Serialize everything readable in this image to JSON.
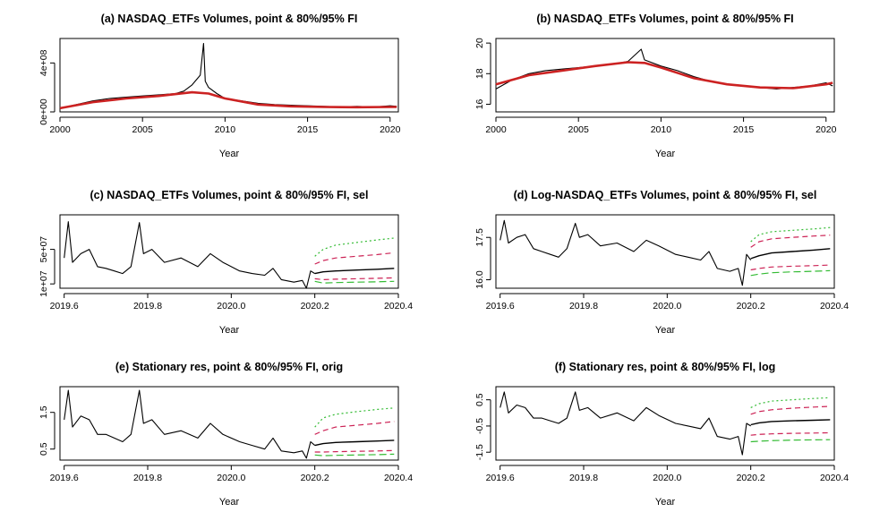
{
  "figure": {
    "xlabel": "Year",
    "colors": {
      "series": "#000000",
      "trend": "#cc2222",
      "fi80": "#cc2255",
      "fi95": "#33bb33"
    }
  },
  "chart_data": [
    {
      "id": "a",
      "type": "line",
      "title": "(a) NASDAQ_ETFs Volumes, point & 80%/95% FI",
      "xlabel": "Year",
      "ylabel": "",
      "xlim": [
        2000,
        2020.5
      ],
      "ylim": [
        0,
        600000000
      ],
      "xticks": [
        2000,
        2005,
        2010,
        2015,
        2020
      ],
      "xtick_labels": [
        "2000",
        "2005",
        "2010",
        "2015",
        "2020"
      ],
      "yticks": [
        0,
        400000000
      ],
      "ytick_labels": [
        "0e+00",
        "4e+08"
      ],
      "grid": false,
      "legend": "none",
      "series": [
        {
          "role": "observed",
          "x": [
            2000,
            2001,
            2002,
            2003,
            2004,
            2005,
            2006,
            2007,
            2007.5,
            2008,
            2008.5,
            2008.7,
            2008.8,
            2009,
            2009.5,
            2010,
            2011,
            2012,
            2013,
            2014,
            2015,
            2016,
            2017,
            2018,
            2019,
            2020,
            2020.4
          ],
          "y": [
            30000000,
            60000000,
            90000000,
            110000000,
            120000000,
            130000000,
            140000000,
            150000000,
            170000000,
            220000000,
            300000000,
            560000000,
            250000000,
            200000000,
            150000000,
            110000000,
            90000000,
            70000000,
            60000000,
            55000000,
            50000000,
            45000000,
            40000000,
            45000000,
            40000000,
            50000000,
            45000000
          ]
        },
        {
          "role": "trend",
          "x": [
            2000,
            2002,
            2004,
            2006,
            2008,
            2009,
            2010,
            2012,
            2014,
            2016,
            2018,
            2020,
            2020.4
          ],
          "y": [
            30000000,
            80000000,
            110000000,
            130000000,
            160000000,
            150000000,
            110000000,
            60000000,
            45000000,
            40000000,
            38000000,
            40000000,
            40000000
          ]
        }
      ]
    },
    {
      "id": "b",
      "type": "line",
      "title": "(b) NASDAQ_ETFs Volumes, point & 80%/95% FI",
      "xlabel": "Year",
      "ylabel": "",
      "xlim": [
        2000,
        2020.5
      ],
      "ylim": [
        15.5,
        20.3
      ],
      "xticks": [
        2000,
        2005,
        2010,
        2015,
        2020
      ],
      "xtick_labels": [
        "2000",
        "2005",
        "2010",
        "2015",
        "2020"
      ],
      "yticks": [
        16,
        18,
        20
      ],
      "ytick_labels": [
        "16",
        "18",
        "20"
      ],
      "grid": false,
      "legend": "none",
      "series": [
        {
          "role": "observed",
          "x": [
            2000,
            2001,
            2002,
            2003,
            2004,
            2005,
            2006,
            2007,
            2008,
            2008.8,
            2009,
            2010,
            2011,
            2012,
            2013,
            2014,
            2015,
            2016,
            2017,
            2018,
            2019,
            2020,
            2020.4
          ],
          "y": [
            17.0,
            17.6,
            18.0,
            18.2,
            18.3,
            18.4,
            18.5,
            18.6,
            18.8,
            19.6,
            18.9,
            18.5,
            18.2,
            17.8,
            17.5,
            17.3,
            17.2,
            17.1,
            17.0,
            17.1,
            17.2,
            17.4,
            17.2
          ]
        },
        {
          "role": "trend",
          "x": [
            2000,
            2002,
            2004,
            2006,
            2008,
            2009,
            2010,
            2012,
            2014,
            2016,
            2018,
            2020,
            2020.4
          ],
          "y": [
            17.3,
            17.9,
            18.2,
            18.5,
            18.75,
            18.7,
            18.4,
            17.7,
            17.3,
            17.1,
            17.05,
            17.3,
            17.4
          ]
        }
      ]
    },
    {
      "id": "c",
      "type": "line",
      "title": "(c) NASDAQ_ETFs Volumes, point & 80%/95% FI, sel",
      "xlabel": "Year",
      "ylabel": "",
      "xlim": [
        2019.59,
        2020.4
      ],
      "ylim": [
        5000000,
        90000000
      ],
      "xticks": [
        2019.6,
        2019.8,
        2020.0,
        2020.2,
        2020.4
      ],
      "xtick_labels": [
        "2019.6",
        "2019.8",
        "2020.0",
        "2020.2",
        "2020.4"
      ],
      "yticks": [
        10000000,
        50000000
      ],
      "ytick_labels": [
        "1e+07",
        "5e+07"
      ],
      "grid": false,
      "legend": "none",
      "series": [
        {
          "role": "observed",
          "x": [
            2019.6,
            2019.61,
            2019.62,
            2019.64,
            2019.66,
            2019.68,
            2019.7,
            2019.72,
            2019.74,
            2019.76,
            2019.78,
            2019.79,
            2019.81,
            2019.84,
            2019.88,
            2019.92,
            2019.95,
            2019.98,
            2020.02,
            2020.05,
            2020.08,
            2020.1,
            2020.12,
            2020.15,
            2020.17,
            2020.18,
            2020.19,
            2020.2
          ],
          "y": [
            40000000,
            82000000,
            35000000,
            45000000,
            50000000,
            30000000,
            28000000,
            25000000,
            22000000,
            30000000,
            81000000,
            45000000,
            50000000,
            35000000,
            40000000,
            30000000,
            45000000,
            35000000,
            25000000,
            22000000,
            20000000,
            28000000,
            15000000,
            12000000,
            14000000,
            5000000,
            25000000,
            22000000
          ]
        },
        {
          "role": "point-forecast",
          "x": [
            2020.2,
            2020.22,
            2020.25,
            2020.3,
            2020.35,
            2020.39
          ],
          "y": [
            22000000,
            24000000,
            25000000,
            26000000,
            27000000,
            28000000
          ]
        },
        {
          "role": "fi80-upper",
          "x": [
            2020.2,
            2020.22,
            2020.25,
            2020.3,
            2020.35,
            2020.39
          ],
          "y": [
            33000000,
            37000000,
            40000000,
            42000000,
            44000000,
            46000000
          ]
        },
        {
          "role": "fi80-lower",
          "x": [
            2020.2,
            2020.22,
            2020.25,
            2020.3,
            2020.35,
            2020.39
          ],
          "y": [
            16000000,
            15000000,
            15500000,
            16000000,
            16500000,
            17000000
          ]
        },
        {
          "role": "fi95-upper",
          "x": [
            2020.2,
            2020.22,
            2020.25,
            2020.3,
            2020.35,
            2020.39
          ],
          "y": [
            42000000,
            50000000,
            55000000,
            58000000,
            61000000,
            63000000
          ]
        },
        {
          "role": "fi95-lower",
          "x": [
            2020.2,
            2020.22,
            2020.25,
            2020.3,
            2020.35,
            2020.39
          ],
          "y": [
            13000000,
            11000000,
            11500000,
            12000000,
            12500000,
            13000000
          ]
        }
      ]
    },
    {
      "id": "d",
      "type": "line",
      "title": "(d) Log-NASDAQ_ETFs Volumes, point & 80%/95% FI, sel",
      "xlabel": "Year",
      "ylabel": "",
      "xlim": [
        2019.59,
        2020.4
      ],
      "ylim": [
        15.7,
        18.3
      ],
      "xticks": [
        2019.6,
        2019.8,
        2020.0,
        2020.2,
        2020.4
      ],
      "xtick_labels": [
        "2019.6",
        "2019.8",
        "2020.0",
        "2020.2",
        "2020.4"
      ],
      "yticks": [
        16.0,
        17.5
      ],
      "ytick_labels": [
        "16.0",
        "17.5"
      ],
      "grid": false,
      "legend": "none",
      "series": [
        {
          "role": "observed",
          "x": [
            2019.6,
            2019.61,
            2019.62,
            2019.64,
            2019.66,
            2019.68,
            2019.7,
            2019.72,
            2019.74,
            2019.76,
            2019.78,
            2019.79,
            2019.81,
            2019.84,
            2019.88,
            2019.92,
            2019.95,
            2019.98,
            2020.02,
            2020.05,
            2020.08,
            2020.1,
            2020.12,
            2020.15,
            2020.17,
            2020.18,
            2020.19,
            2020.2
          ],
          "y": [
            17.4,
            18.1,
            17.3,
            17.5,
            17.6,
            17.1,
            17.0,
            16.9,
            16.8,
            17.1,
            18.0,
            17.5,
            17.6,
            17.2,
            17.3,
            17.0,
            17.4,
            17.2,
            16.9,
            16.8,
            16.7,
            17.0,
            16.4,
            16.3,
            16.4,
            15.8,
            16.9,
            16.7
          ]
        },
        {
          "role": "point-forecast",
          "x": [
            2020.2,
            2020.22,
            2020.25,
            2020.3,
            2020.35,
            2020.39
          ],
          "y": [
            16.75,
            16.85,
            16.95,
            17.0,
            17.05,
            17.1
          ]
        },
        {
          "role": "fi80-upper",
          "x": [
            2020.2,
            2020.22,
            2020.25,
            2020.3,
            2020.35,
            2020.39
          ],
          "y": [
            17.15,
            17.35,
            17.45,
            17.5,
            17.55,
            17.58
          ]
        },
        {
          "role": "fi80-lower",
          "x": [
            2020.2,
            2020.22,
            2020.25,
            2020.3,
            2020.35,
            2020.39
          ],
          "y": [
            16.35,
            16.4,
            16.45,
            16.48,
            16.5,
            16.52
          ]
        },
        {
          "role": "fi95-upper",
          "x": [
            2020.2,
            2020.22,
            2020.25,
            2020.3,
            2020.35,
            2020.39
          ],
          "y": [
            17.35,
            17.6,
            17.7,
            17.75,
            17.8,
            17.85
          ]
        },
        {
          "role": "fi95-lower",
          "x": [
            2020.2,
            2020.22,
            2020.25,
            2020.3,
            2020.35,
            2020.39
          ],
          "y": [
            16.15,
            16.2,
            16.25,
            16.28,
            16.3,
            16.32
          ]
        }
      ]
    },
    {
      "id": "e",
      "type": "line",
      "title": "(e) Stationary res, point & 80%/95% FI, orig",
      "xlabel": "Year",
      "ylabel": "",
      "xlim": [
        2019.59,
        2020.4
      ],
      "ylim": [
        0.2,
        2.2
      ],
      "xticks": [
        2019.6,
        2019.8,
        2020.0,
        2020.2,
        2020.4
      ],
      "xtick_labels": [
        "2019.6",
        "2019.8",
        "2020.0",
        "2020.2",
        "2020.4"
      ],
      "yticks": [
        0.5,
        1.5
      ],
      "ytick_labels": [
        "0.5",
        "1.5"
      ],
      "grid": false,
      "legend": "none",
      "series": [
        {
          "role": "observed",
          "x": [
            2019.6,
            2019.61,
            2019.62,
            2019.64,
            2019.66,
            2019.68,
            2019.7,
            2019.72,
            2019.74,
            2019.76,
            2019.78,
            2019.79,
            2019.81,
            2019.84,
            2019.88,
            2019.92,
            2019.95,
            2019.98,
            2020.02,
            2020.05,
            2020.08,
            2020.1,
            2020.12,
            2020.15,
            2020.17,
            2020.18,
            2020.19,
            2020.2
          ],
          "y": [
            1.3,
            2.1,
            1.1,
            1.4,
            1.3,
            0.9,
            0.9,
            0.8,
            0.7,
            0.9,
            2.1,
            1.2,
            1.3,
            0.9,
            1.0,
            0.8,
            1.2,
            0.9,
            0.7,
            0.6,
            0.5,
            0.8,
            0.45,
            0.4,
            0.45,
            0.25,
            0.7,
            0.6
          ]
        },
        {
          "role": "point-forecast",
          "x": [
            2020.2,
            2020.22,
            2020.25,
            2020.3,
            2020.35,
            2020.39
          ],
          "y": [
            0.6,
            0.65,
            0.68,
            0.7,
            0.72,
            0.74
          ]
        },
        {
          "role": "fi80-upper",
          "x": [
            2020.2,
            2020.22,
            2020.25,
            2020.3,
            2020.35,
            2020.39
          ],
          "y": [
            0.9,
            1.0,
            1.1,
            1.15,
            1.2,
            1.25
          ]
        },
        {
          "role": "fi80-lower",
          "x": [
            2020.2,
            2020.22,
            2020.25,
            2020.3,
            2020.35,
            2020.39
          ],
          "y": [
            0.42,
            0.42,
            0.43,
            0.44,
            0.45,
            0.46
          ]
        },
        {
          "role": "fi95-upper",
          "x": [
            2020.2,
            2020.22,
            2020.25,
            2020.3,
            2020.35,
            2020.39
          ],
          "y": [
            1.1,
            1.35,
            1.45,
            1.52,
            1.58,
            1.62
          ]
        },
        {
          "role": "fi95-lower",
          "x": [
            2020.2,
            2020.22,
            2020.25,
            2020.3,
            2020.35,
            2020.39
          ],
          "y": [
            0.34,
            0.32,
            0.33,
            0.34,
            0.35,
            0.36
          ]
        }
      ]
    },
    {
      "id": "f",
      "type": "line",
      "title": "(f) Stationary res, point & 80%/95% FI, log",
      "xlabel": "Year",
      "ylabel": "",
      "xlim": [
        2019.59,
        2020.4
      ],
      "ylim": [
        -1.8,
        1.0
      ],
      "xticks": [
        2019.6,
        2019.8,
        2020.0,
        2020.2,
        2020.4
      ],
      "xtick_labels": [
        "2019.6",
        "2019.8",
        "2020.0",
        "2020.2",
        "2020.4"
      ],
      "yticks": [
        -1.5,
        -0.5,
        0.5
      ],
      "ytick_labels": [
        "-1.5",
        "-0.5",
        "0.5"
      ],
      "grid": false,
      "legend": "none",
      "series": [
        {
          "role": "observed",
          "x": [
            2019.6,
            2019.61,
            2019.62,
            2019.64,
            2019.66,
            2019.68,
            2019.7,
            2019.72,
            2019.74,
            2019.76,
            2019.78,
            2019.79,
            2019.81,
            2019.84,
            2019.88,
            2019.92,
            2019.95,
            2019.98,
            2020.02,
            2020.05,
            2020.08,
            2020.1,
            2020.12,
            2020.15,
            2020.17,
            2020.18,
            2020.19,
            2020.2
          ],
          "y": [
            0.2,
            0.8,
            0.0,
            0.3,
            0.2,
            -0.2,
            -0.2,
            -0.3,
            -0.4,
            -0.2,
            0.8,
            0.1,
            0.2,
            -0.2,
            0.0,
            -0.3,
            0.2,
            -0.1,
            -0.4,
            -0.5,
            -0.6,
            -0.2,
            -0.9,
            -1.0,
            -0.9,
            -1.6,
            -0.4,
            -0.5
          ]
        },
        {
          "role": "point-forecast",
          "x": [
            2020.2,
            2020.22,
            2020.25,
            2020.3,
            2020.35,
            2020.39
          ],
          "y": [
            -0.45,
            -0.38,
            -0.33,
            -0.3,
            -0.28,
            -0.26
          ]
        },
        {
          "role": "fi80-upper",
          "x": [
            2020.2,
            2020.22,
            2020.25,
            2020.3,
            2020.35,
            2020.39
          ],
          "y": [
            -0.05,
            0.05,
            0.12,
            0.18,
            0.22,
            0.25
          ]
        },
        {
          "role": "fi80-lower",
          "x": [
            2020.2,
            2020.22,
            2020.25,
            2020.3,
            2020.35,
            2020.39
          ],
          "y": [
            -0.85,
            -0.82,
            -0.8,
            -0.78,
            -0.77,
            -0.76
          ]
        },
        {
          "role": "fi95-upper",
          "x": [
            2020.2,
            2020.22,
            2020.25,
            2020.3,
            2020.35,
            2020.39
          ],
          "y": [
            0.2,
            0.35,
            0.45,
            0.5,
            0.55,
            0.58
          ]
        },
        {
          "role": "fi95-lower",
          "x": [
            2020.2,
            2020.22,
            2020.25,
            2020.3,
            2020.35,
            2020.39
          ],
          "y": [
            -1.1,
            -1.08,
            -1.06,
            -1.04,
            -1.03,
            -1.02
          ]
        }
      ]
    }
  ]
}
